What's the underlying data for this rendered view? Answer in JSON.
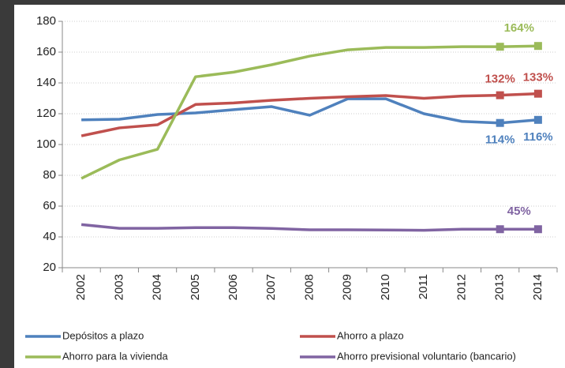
{
  "chart_data": {
    "type": "line",
    "categories": [
      "2002",
      "2003",
      "2004",
      "2005",
      "2006",
      "2007",
      "2008",
      "2009",
      "2010",
      "2011",
      "2012",
      "2013",
      "2014"
    ],
    "ylim": [
      20,
      180
    ],
    "yticks": [
      20,
      40,
      60,
      80,
      100,
      120,
      140,
      160,
      180
    ],
    "grid": true,
    "series": [
      {
        "name": "Depósitos a plazo",
        "color": "#4f81bd",
        "values": [
          116,
          116.4,
          119.5,
          120.5,
          122.6,
          124.6,
          119,
          129.7,
          129.7,
          120,
          115,
          114,
          116
        ],
        "value_labels": [
          null,
          null,
          null,
          null,
          null,
          null,
          null,
          null,
          null,
          null,
          null,
          "114%",
          "116%"
        ]
      },
      {
        "name": "Ahorro a plazo",
        "color": "#c0504d",
        "values": [
          105.6,
          110.8,
          112.8,
          126,
          127,
          128.7,
          130,
          131,
          131.8,
          130,
          131.5,
          132,
          133
        ],
        "value_labels": [
          null,
          null,
          null,
          null,
          null,
          null,
          null,
          null,
          null,
          null,
          null,
          "132%",
          "133%"
        ]
      },
      {
        "name": "Ahorro para la vivienda",
        "color": "#9bbb59",
        "values": [
          78,
          90,
          96.9,
          144,
          147,
          151.8,
          157.4,
          161.5,
          163,
          163,
          163.5,
          163.5,
          164
        ],
        "value_labels": [
          null,
          null,
          null,
          null,
          null,
          null,
          null,
          null,
          null,
          null,
          null,
          null,
          "164%"
        ]
      },
      {
        "name": "Ahorro previsional voluntario (bancario)",
        "color": "#8064a2",
        "values": [
          48,
          45.6,
          45.6,
          46,
          46,
          45.5,
          44.6,
          44.6,
          44.5,
          44.3,
          45,
          45,
          45
        ],
        "value_labels": [
          null,
          null,
          null,
          null,
          null,
          null,
          null,
          null,
          null,
          null,
          null,
          null,
          "45%"
        ]
      }
    ]
  }
}
